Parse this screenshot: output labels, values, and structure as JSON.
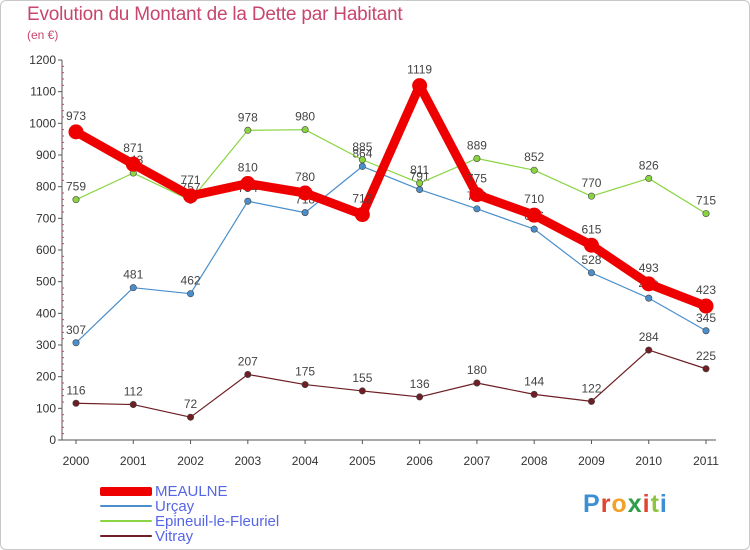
{
  "header": {
    "title": "Evolution du Montant de la Dette par Habitant",
    "subtitle": "(en €)"
  },
  "brand": {
    "letters": [
      "P",
      "r",
      "o",
      "x",
      "i",
      "t",
      "i"
    ]
  },
  "chart_data": {
    "type": "line",
    "title": "Evolution du Montant de la Dette par Habitant",
    "ylabel": "(en €)",
    "xlabel": "",
    "ylim": [
      0,
      1200
    ],
    "yticks": [
      "0",
      "100",
      "200",
      "300",
      "400",
      "500",
      "600",
      "700",
      "800",
      "900",
      "1000",
      "1100",
      "1200"
    ],
    "categories": [
      "2000",
      "2001",
      "2002",
      "2003",
      "2004",
      "2005",
      "2006",
      "2007",
      "2008",
      "2009",
      "2010",
      "2011"
    ],
    "grid": false,
    "legend_position": "bottom-left",
    "series": [
      {
        "name": "MEAULNE",
        "color": "#ee0000",
        "emphasis": true,
        "values": [
          973,
          871,
          771,
          810,
          780,
          712,
          1119,
          775,
          710,
          615,
          493,
          423
        ]
      },
      {
        "name": "Urçay",
        "color": "#4a8fcc",
        "values": [
          307,
          481,
          462,
          754,
          718,
          864,
          791,
          730,
          666,
          528,
          448,
          345
        ]
      },
      {
        "name": "Epineuil-le-Fleuriel",
        "color": "#8ad442",
        "values": [
          759,
          843,
          757,
          978,
          980,
          885,
          811,
          889,
          852,
          770,
          826,
          715
        ]
      },
      {
        "name": "Vitray",
        "color": "#6e1e24",
        "values": [
          116,
          112,
          72,
          207,
          175,
          155,
          136,
          180,
          144,
          122,
          284,
          225
        ]
      }
    ]
  }
}
